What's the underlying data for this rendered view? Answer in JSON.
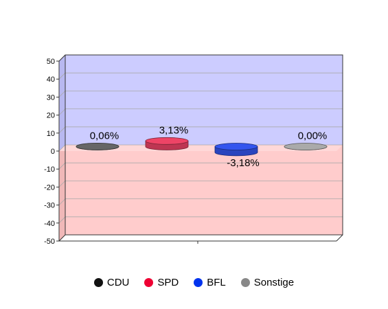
{
  "chart_data": {
    "type": "bar",
    "style": "3d-disc",
    "categories": [
      "CDU",
      "SPD",
      "BFL",
      "Sonstige"
    ],
    "values": [
      0.06,
      3.13,
      -3.18,
      0.0
    ],
    "data_labels": [
      "0,06%",
      "3,13%",
      "-3,18%",
      "0,00%"
    ],
    "ylim": [
      -50,
      50
    ],
    "yticks": [
      50,
      40,
      30,
      20,
      10,
      0,
      -10,
      -20,
      -30,
      -40,
      -50
    ],
    "ytick_labels": [
      "50",
      "40",
      "30",
      "20",
      "10",
      "0",
      "-10",
      "-20",
      "-30",
      "-40",
      "-50"
    ],
    "grid": true,
    "legend_placement": "bottom-center",
    "positive_background": "#ccccff",
    "negative_background": "#ffcccc",
    "colors": {
      "CDU": "#111111",
      "SPD": "#ee0033",
      "BFL": "#0033ee",
      "Sonstige": "#888888"
    },
    "bar_colors": {
      "CDU": "#666666",
      "SPD": "#ee4466",
      "BFL": "#3355ee",
      "Sonstige": "#aaaaaa"
    },
    "legend": [
      "CDU",
      "SPD",
      "BFL",
      "Sonstige"
    ]
  }
}
